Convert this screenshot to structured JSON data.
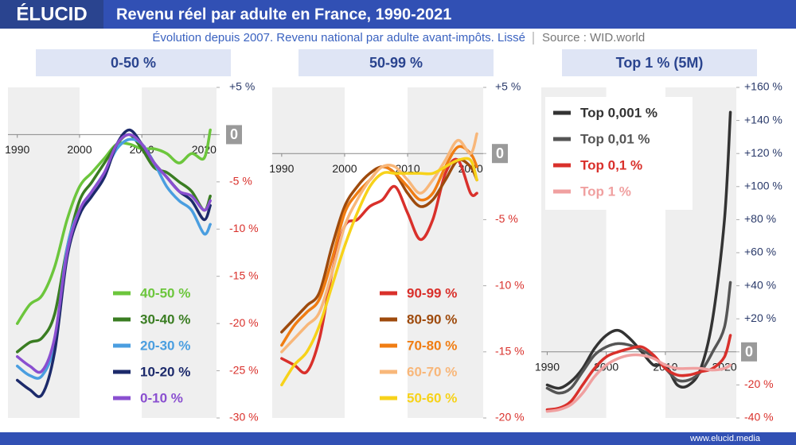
{
  "header": {
    "logo": "ÉLUCID",
    "title": "Revenu réel par adulte en France, 1990-2021",
    "subtitle": "Évolution depuis 2007. Revenu national par adulte avant-impôts. Lissé",
    "source": "Source : WID.world"
  },
  "footer": "www.elucid.media",
  "chart_data": [
    {
      "type": "line",
      "title": "0-50 %",
      "x": [
        1990,
        1992,
        1994,
        1996,
        1998,
        2000,
        2002,
        2004,
        2006,
        2008,
        2010,
        2012,
        2014,
        2016,
        2018,
        2020,
        2021
      ],
      "xlim": [
        1988.5,
        2022
      ],
      "xticks": [
        1990,
        2000,
        2010,
        2020
      ],
      "ylim": [
        -30,
        5
      ],
      "yticks": [
        {
          "value": 5,
          "label": "+5 %"
        },
        0,
        {
          "value": -5,
          "label": "-5 %"
        },
        {
          "value": -10,
          "label": "-10 %"
        },
        {
          "value": -15,
          "label": "-15 %"
        },
        {
          "value": -20,
          "label": "-20 %"
        },
        {
          "value": -25,
          "label": "-25 %"
        },
        {
          "value": -30,
          "label": "-30 %"
        }
      ],
      "legend": "lower right",
      "series": [
        {
          "name": "40-50 %",
          "color": "#6cc63c",
          "values": [
            -20,
            -18,
            -17,
            -14,
            -9,
            -5.5,
            -4,
            -2.5,
            -1,
            -1,
            -1.5,
            -1.5,
            -2,
            -3,
            -2,
            -2.5,
            0.5
          ]
        },
        {
          "name": "30-40 %",
          "color": "#3a7d22",
          "values": [
            -23,
            -22,
            -21.5,
            -19,
            -12,
            -7,
            -5,
            -3,
            -1,
            0,
            -1.5,
            -3.5,
            -4,
            -5,
            -6,
            -8,
            -6.5
          ]
        },
        {
          "name": "20-30 %",
          "color": "#4a9ee0",
          "values": [
            -24.5,
            -25.5,
            -25.5,
            -22,
            -12,
            -8,
            -6,
            -4,
            -1.5,
            -0.5,
            -1,
            -3,
            -5.5,
            -7,
            -8,
            -10.5,
            -9.5
          ]
        },
        {
          "name": "10-20 %",
          "color": "#1c2a6b",
          "values": [
            -26,
            -27,
            -27.5,
            -23,
            -13,
            -8.5,
            -6.5,
            -4.5,
            -1,
            0.5,
            -1,
            -3,
            -4.5,
            -6,
            -7,
            -9,
            -7.5
          ]
        },
        {
          "name": "0-10 %",
          "color": "#8a4fd0",
          "values": [
            -23.5,
            -24.5,
            -25,
            -21.5,
            -12.5,
            -8,
            -6,
            -4,
            -1,
            0,
            -1,
            -3,
            -4.5,
            -6,
            -6.5,
            -8,
            -7
          ]
        }
      ]
    },
    {
      "type": "line",
      "title": "50-99 %",
      "x": [
        1990,
        1992,
        1994,
        1996,
        1998,
        2000,
        2002,
        2004,
        2006,
        2008,
        2010,
        2012,
        2014,
        2016,
        2018,
        2020,
        2021
      ],
      "xlim": [
        1988.5,
        2022
      ],
      "xticks": [
        1990,
        2000,
        2010,
        2020
      ],
      "ylim": [
        -20,
        5
      ],
      "yticks": [
        {
          "value": 5,
          "label": "+5 %"
        },
        0,
        {
          "value": -5,
          "label": "-5 %"
        },
        {
          "value": -10,
          "label": "-10 %"
        },
        {
          "value": -15,
          "label": "-15 %"
        },
        {
          "value": -20,
          "label": "-20 %"
        }
      ],
      "legend": "lower right",
      "series": [
        {
          "name": "90-99 %",
          "color": "#d9302b",
          "values": [
            -15.5,
            -16,
            -16.5,
            -14,
            -9,
            -5.5,
            -5,
            -4,
            -3.5,
            -2.5,
            -4.5,
            -6.5,
            -5,
            -1.5,
            -0.5,
            -3,
            -3
          ]
        },
        {
          "name": "80-90 %",
          "color": "#9e4a0c",
          "values": [
            -13.5,
            -12.5,
            -11.5,
            -10.5,
            -7,
            -4,
            -2.5,
            -1.5,
            -1,
            -1.5,
            -3,
            -4,
            -3.5,
            -2,
            -0.5,
            -1,
            -2
          ]
        },
        {
          "name": "70-80 %",
          "color": "#f07d13",
          "values": [
            -14.5,
            -13,
            -12,
            -11,
            -8,
            -4.5,
            -3,
            -2,
            -1,
            -1.5,
            -2.5,
            -3.5,
            -3,
            -1,
            0.5,
            0,
            -1
          ]
        },
        {
          "name": "60-70 %",
          "color": "#f8b77a",
          "values": [
            -15,
            -14,
            -13,
            -12,
            -9,
            -5.5,
            -3.5,
            -2,
            -1,
            -1,
            -2,
            -3,
            -2,
            -0.5,
            1,
            0,
            1.5
          ]
        },
        {
          "name": "50-60 %",
          "color": "#f7d21a",
          "values": [
            -17.5,
            -16,
            -15,
            -13,
            -10,
            -7,
            -4.5,
            -2.5,
            -1.5,
            -1.5,
            -1.5,
            -1.5,
            -1.5,
            -1,
            -0.5,
            -0.5,
            -2
          ]
        }
      ]
    },
    {
      "type": "line",
      "title": "Top 1 % (5M)",
      "x": [
        1990,
        1992,
        1994,
        1996,
        1998,
        2000,
        2002,
        2004,
        2006,
        2008,
        2010,
        2012,
        2014,
        2016,
        2018,
        2020,
        2021
      ],
      "xlim": [
        1989,
        2022
      ],
      "xticks": [
        1990,
        2000,
        2010,
        2020
      ],
      "ylim": [
        -40,
        160
      ],
      "yticks": [
        {
          "value": 160,
          "label": "+160 %"
        },
        {
          "value": 140,
          "label": "+140 %"
        },
        {
          "value": 120,
          "label": "+120 %"
        },
        {
          "value": 100,
          "label": "+100 %"
        },
        {
          "value": 80,
          "label": "+80 %"
        },
        {
          "value": 60,
          "label": "+60 %"
        },
        {
          "value": 40,
          "label": "+40 %"
        },
        {
          "value": 20,
          "label": "+20 %"
        },
        0,
        {
          "value": -20,
          "label": "-20 %"
        },
        {
          "value": -40,
          "label": "-40 %"
        }
      ],
      "legend": "upper left",
      "series": [
        {
          "name": "Top 0,001 %",
          "color": "#333333",
          "values": [
            -20,
            -22,
            -18,
            -10,
            2,
            10,
            13,
            8,
            0,
            -8,
            -8,
            -20,
            -20,
            -10,
            20,
            80,
            145
          ]
        },
        {
          "name": "Top 0,01 %",
          "color": "#555555",
          "values": [
            -22,
            -25,
            -22,
            -12,
            -2,
            3,
            5,
            4,
            1,
            -3,
            -10,
            -17,
            -17,
            -12,
            0,
            15,
            42
          ]
        },
        {
          "name": "Top 0,1 %",
          "color": "#d9302b",
          "values": [
            -35,
            -34,
            -30,
            -20,
            -10,
            -3,
            0,
            2,
            3,
            -2,
            -10,
            -14,
            -14,
            -12,
            -10,
            -3,
            10
          ]
        },
        {
          "name": "Top 1 %",
          "color": "#f0a0a0",
          "values": [
            -36,
            -35,
            -32,
            -25,
            -15,
            -8,
            -4,
            -2,
            -2,
            -4,
            -8,
            -10,
            -10,
            -10,
            -11,
            -10,
            -8
          ]
        }
      ]
    }
  ]
}
